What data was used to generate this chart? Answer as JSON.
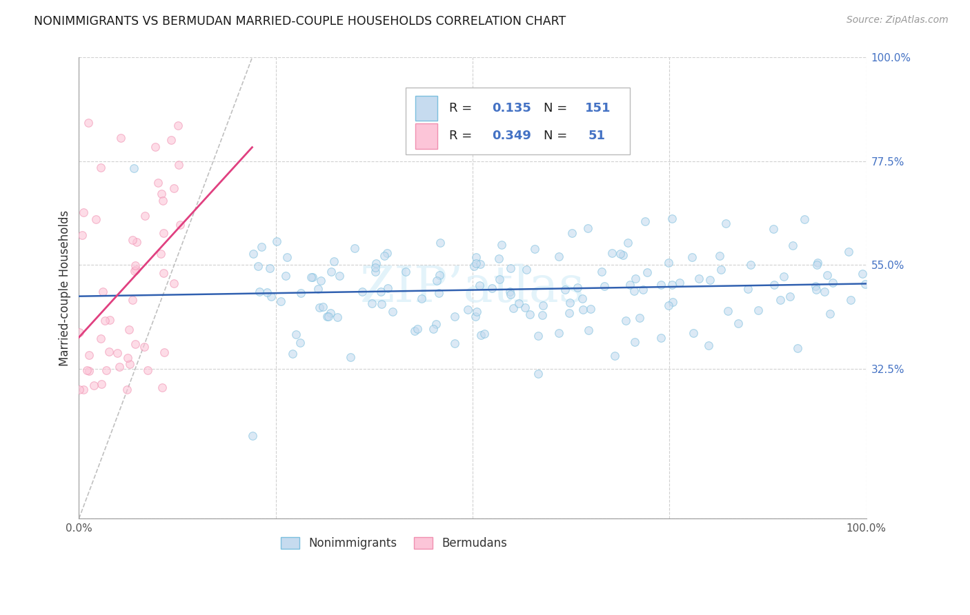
{
  "title": "NONIMMIGRANTS VS BERMUDAN MARRIED-COUPLE HOUSEHOLDS CORRELATION CHART",
  "source": "Source: ZipAtlas.com",
  "ylabel": "Married-couple Households",
  "xlim": [
    0,
    1
  ],
  "ylim": [
    0,
    1
  ],
  "y_tick_labels_right": [
    "100.0%",
    "77.5%",
    "55.0%",
    "32.5%"
  ],
  "y_tick_vals_right": [
    1.0,
    0.775,
    0.55,
    0.325
  ],
  "R_blue": 0.135,
  "N_blue": 151,
  "R_pink": 0.349,
  "N_pink": 51,
  "blue_edge": "#7bbfde",
  "blue_face": "#c6dbef",
  "pink_edge": "#f090b0",
  "pink_face": "#fcc5d8",
  "trend_blue": "#3060b0",
  "trend_pink": "#e04080",
  "trend_gray": "#c0c0c0",
  "background": "#ffffff",
  "grid_color": "#d0d0d0",
  "scatter_alpha": 0.6,
  "scatter_size": 70,
  "watermark_color": "#d8eef8",
  "watermark_alpha": 0.7
}
